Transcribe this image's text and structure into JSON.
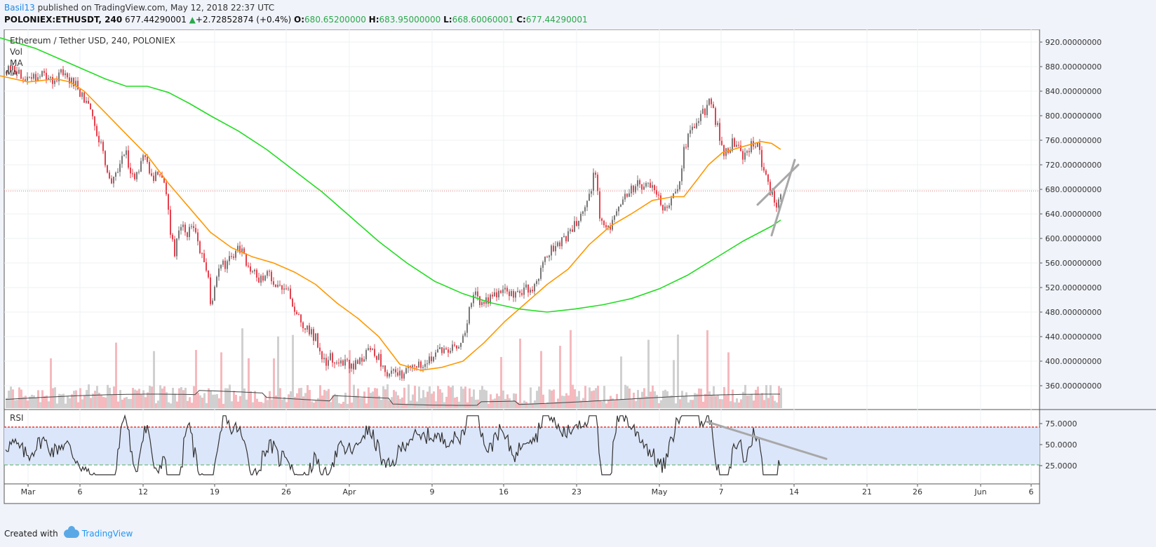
{
  "header": {
    "author": "Basil13",
    "published": "published on TradingView.com, May 12, 2018 22:37 UTC"
  },
  "ohlc": {
    "symbol": "POLONIEX:ETHUSDT, 240",
    "last": "677.44290001",
    "arrow": "▲",
    "change": "+2.72852874 (+0.4%)",
    "o_label": "O:",
    "o": "680.65200000",
    "h_label": "H:",
    "h": "683.95000000",
    "l_label": "L:",
    "l": "668.60060001",
    "c_label": "C:",
    "c": "677.44290001"
  },
  "legend": {
    "title": "Ethereum / Tether USD, 240, POLONIEX",
    "vol": "Vol",
    "ma": "MA",
    "ma2": "MA",
    "rsi": "RSI"
  },
  "colors": {
    "up": "#777777",
    "down": "#e5414e",
    "ma_fast": "#ff9800",
    "ma_slow": "#22dd22",
    "rsi_line": "#333333",
    "rsi_band": "#dce6fa",
    "upper_line": "#e53935",
    "lower_line": "#4caf50",
    "drawing": "#a8a8a8",
    "vol_up": "#d0d0d0",
    "vol_down": "#f5b9be"
  },
  "chart_data": [
    {
      "type": "candlestick",
      "title": "Ethereum / Tether USD, 240, POLONIEX",
      "ylim": [
        320,
        940
      ],
      "yticks": [
        "920.00000000",
        "880.00000000",
        "840.00000000",
        "800.00000000",
        "760.00000000",
        "720.00000000",
        "680.00000000",
        "640.00000000",
        "600.00000000",
        "560.00000000",
        "520.00000000",
        "480.00000000",
        "440.00000000",
        "400.00000000",
        "360.00000000"
      ],
      "xticks": [
        "Mar",
        "6",
        "12",
        "19",
        "26",
        "Apr",
        "9",
        "16",
        "23",
        "May",
        "7",
        "14",
        "21",
        "26",
        "Jun",
        "6"
      ],
      "last_price": 677.44,
      "price_path": [
        [
          0,
          870
        ],
        [
          20,
          875
        ],
        [
          40,
          860
        ],
        [
          60,
          870
        ],
        [
          75,
          860
        ],
        [
          85,
          868
        ],
        [
          100,
          860
        ],
        [
          110,
          845
        ],
        [
          120,
          825
        ],
        [
          130,
          800
        ],
        [
          140,
          765
        ],
        [
          147,
          740
        ],
        [
          152,
          710
        ],
        [
          158,
          690
        ],
        [
          165,
          700
        ],
        [
          170,
          730
        ],
        [
          178,
          740
        ],
        [
          185,
          710
        ],
        [
          192,
          690
        ],
        [
          200,
          730
        ],
        [
          207,
          735
        ],
        [
          215,
          700
        ],
        [
          222,
          700
        ],
        [
          232,
          690
        ],
        [
          238,
          660
        ],
        [
          243,
          600
        ],
        [
          248,
          580
        ],
        [
          256,
          620
        ],
        [
          265,
          610
        ],
        [
          275,
          620
        ],
        [
          283,
          580
        ],
        [
          290,
          560
        ],
        [
          296,
          530
        ],
        [
          300,
          470
        ],
        [
          305,
          530
        ],
        [
          312,
          550
        ],
        [
          322,
          560
        ],
        [
          332,
          570
        ],
        [
          338,
          585
        ],
        [
          345,
          575
        ],
        [
          352,
          560
        ],
        [
          360,
          545
        ],
        [
          368,
          530
        ],
        [
          378,
          545
        ],
        [
          388,
          530
        ],
        [
          398,
          525
        ],
        [
          408,
          520
        ],
        [
          418,
          490
        ],
        [
          428,
          460
        ],
        [
          438,
          450
        ],
        [
          448,
          440
        ],
        [
          455,
          420
        ],
        [
          462,
          400
        ],
        [
          470,
          405
        ],
        [
          478,
          395
        ],
        [
          488,
          400
        ],
        [
          498,
          390
        ],
        [
          508,
          395
        ],
        [
          518,
          410
        ],
        [
          528,
          415
        ],
        [
          538,
          410
        ],
        [
          548,
          385
        ],
        [
          558,
          380
        ],
        [
          568,
          375
        ],
        [
          578,
          385
        ],
        [
          588,
          390
        ],
        [
          598,
          395
        ],
        [
          608,
          405
        ],
        [
          618,
          410
        ],
        [
          628,
          415
        ],
        [
          638,
          420
        ],
        [
          648,
          425
        ],
        [
          656,
          430
        ],
        [
          662,
          450
        ],
        [
          668,
          480
        ],
        [
          674,
          500
        ],
        [
          680,
          510
        ],
        [
          686,
          490
        ],
        [
          696,
          500
        ],
        [
          706,
          510
        ],
        [
          716,
          520
        ],
        [
          726,
          510
        ],
        [
          736,
          505
        ],
        [
          746,
          520
        ],
        [
          756,
          520
        ],
        [
          764,
          530
        ],
        [
          772,
          560
        ],
        [
          782,
          575
        ],
        [
          792,
          590
        ],
        [
          802,
          595
        ],
        [
          812,
          610
        ],
        [
          822,
          630
        ],
        [
          832,
          645
        ],
        [
          840,
          670
        ],
        [
          846,
          712
        ],
        [
          850,
          690
        ],
        [
          854,
          635
        ],
        [
          860,
          615
        ],
        [
          868,
          620
        ],
        [
          878,
          650
        ],
        [
          888,
          670
        ],
        [
          898,
          680
        ],
        [
          908,
          690
        ],
        [
          918,
          685
        ],
        [
          928,
          680
        ],
        [
          936,
          665
        ],
        [
          944,
          650
        ],
        [
          952,
          660
        ],
        [
          960,
          675
        ],
        [
          968,
          690
        ],
        [
          975,
          750
        ],
        [
          982,
          770
        ],
        [
          990,
          785
        ],
        [
          998,
          795
        ],
        [
          1004,
          810
        ],
        [
          1012,
          830
        ],
        [
          1016,
          805
        ],
        [
          1022,
          780
        ],
        [
          1030,
          745
        ],
        [
          1036,
          735
        ],
        [
          1044,
          760
        ],
        [
          1052,
          745
        ],
        [
          1060,
          730
        ],
        [
          1068,
          750
        ],
        [
          1075,
          760
        ],
        [
          1082,
          740
        ],
        [
          1090,
          700
        ],
        [
          1095,
          680
        ],
        [
          1100,
          670
        ],
        [
          1105,
          650
        ],
        [
          1110,
          670
        ],
        [
          1113,
          677
        ]
      ],
      "series": [
        {
          "name": "MA",
          "color": "#ff9800",
          "path": [
            [
              0,
              865
            ],
            [
              40,
              855
            ],
            [
              80,
              860
            ],
            [
              100,
              855
            ],
            [
              120,
              840
            ],
            [
              150,
              805
            ],
            [
              180,
              770
            ],
            [
              210,
              735
            ],
            [
              240,
              690
            ],
            [
              270,
              650
            ],
            [
              300,
              610
            ],
            [
              330,
              585
            ],
            [
              360,
              570
            ],
            [
              390,
              560
            ],
            [
              420,
              545
            ],
            [
              450,
              525
            ],
            [
              480,
              495
            ],
            [
              510,
              470
            ],
            [
              540,
              440
            ],
            [
              570,
              395
            ],
            [
              600,
              385
            ],
            [
              630,
              390
            ],
            [
              660,
              400
            ],
            [
              690,
              430
            ],
            [
              720,
              465
            ],
            [
              750,
              495
            ],
            [
              780,
              525
            ],
            [
              810,
              550
            ],
            [
              840,
              590
            ],
            [
              870,
              620
            ],
            [
              900,
              640
            ],
            [
              930,
              662
            ],
            [
              960,
              668
            ],
            [
              975,
              668
            ],
            [
              990,
              690
            ],
            [
              1010,
              720
            ],
            [
              1030,
              740
            ],
            [
              1060,
              750
            ],
            [
              1085,
              758
            ],
            [
              1100,
              755
            ],
            [
              1113,
              745
            ]
          ]
        },
        {
          "name": "MA",
          "color": "#22dd22",
          "path": [
            [
              0,
              927
            ],
            [
              50,
              910
            ],
            [
              100,
              885
            ],
            [
              150,
              860
            ],
            [
              180,
              848
            ],
            [
              210,
              848
            ],
            [
              240,
              838
            ],
            [
              270,
              820
            ],
            [
              300,
              800
            ],
            [
              340,
              775
            ],
            [
              380,
              745
            ],
            [
              420,
              710
            ],
            [
              460,
              675
            ],
            [
              500,
              635
            ],
            [
              540,
              595
            ],
            [
              580,
              560
            ],
            [
              620,
              530
            ],
            [
              660,
              510
            ],
            [
              700,
              495
            ],
            [
              740,
              485
            ],
            [
              780,
              480
            ],
            [
              820,
              485
            ],
            [
              860,
              492
            ],
            [
              900,
              502
            ],
            [
              940,
              518
            ],
            [
              980,
              540
            ],
            [
              1020,
              568
            ],
            [
              1060,
              596
            ],
            [
              1100,
              620
            ],
            [
              1113,
              630
            ]
          ]
        }
      ],
      "drawings": [
        {
          "name": "support-line",
          "points": [
            [
              1100,
              605
            ],
            [
              1133,
              728
            ]
          ]
        },
        {
          "name": "triangle-upper",
          "points": [
            [
              1080,
              655
            ],
            [
              1138,
              720
            ]
          ]
        }
      ]
    },
    {
      "type": "area",
      "title": "Vol",
      "note": "volume histogram with moving average"
    },
    {
      "type": "line",
      "title": "RSI",
      "ylim": [
        10,
        95
      ],
      "yticks": [
        "75.0000",
        "50.0000",
        "25.0000"
      ],
      "upper": 70,
      "lower": 30,
      "trend_line": {
        "points": [
          [
            1008,
            82
          ],
          [
            1178,
            33
          ]
        ]
      }
    }
  ]
}
